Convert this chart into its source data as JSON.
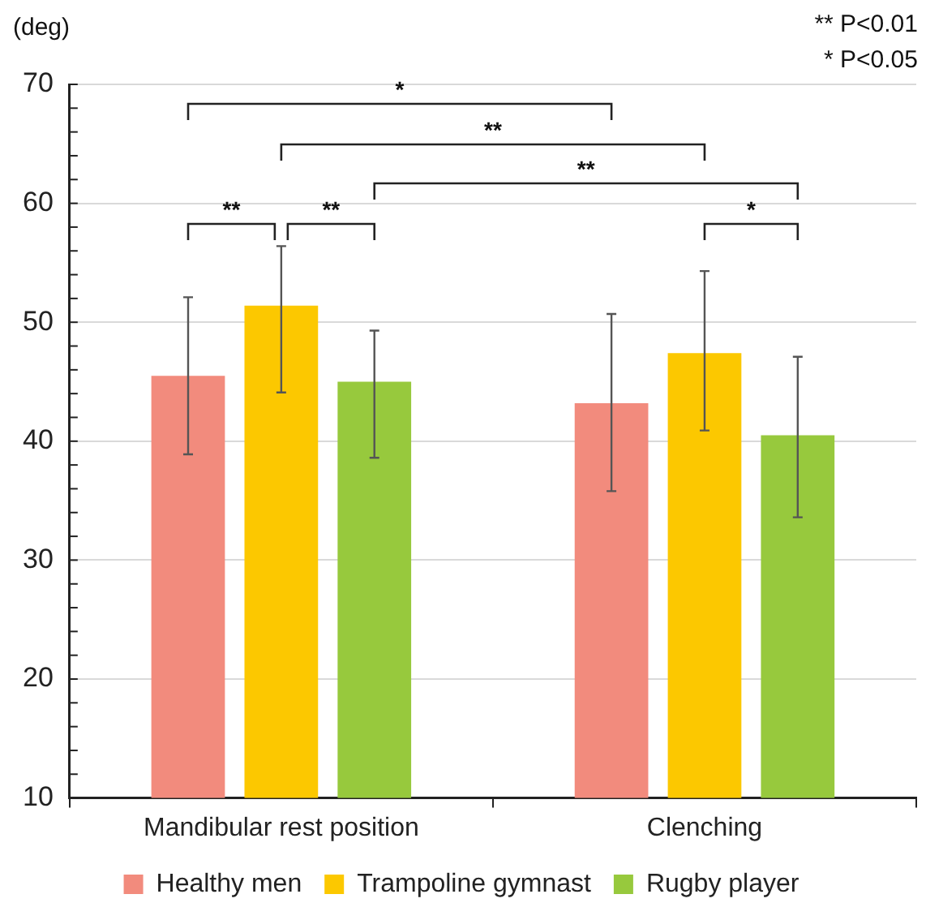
{
  "chart_data": {
    "type": "bar",
    "ylabel": "(deg)",
    "categories": [
      "Mandibular rest position",
      "Clenching"
    ],
    "series": [
      {
        "name": "Healthy men",
        "color": "#f28b7d",
        "values": [
          45.5,
          43.2
        ],
        "errors": [
          [
            38.9,
            52.1
          ],
          [
            35.8,
            50.7
          ]
        ]
      },
      {
        "name": "Trampoline gymnast",
        "color": "#fcc800",
        "values": [
          51.4,
          47.4
        ],
        "errors": [
          [
            44.1,
            56.4
          ],
          [
            40.9,
            54.3
          ]
        ]
      },
      {
        "name": "Rugby player",
        "color": "#97c93d",
        "values": [
          45.0,
          40.5
        ],
        "errors": [
          [
            38.6,
            49.3
          ],
          [
            33.6,
            47.1
          ]
        ]
      }
    ],
    "ylim": [
      10,
      70
    ],
    "yticks": [
      10,
      {
        "value": 12,
        "label": null
      },
      {
        "value": 14,
        "label": null
      },
      {
        "value": 16,
        "label": null
      },
      {
        "value": 18,
        "label": null
      },
      20,
      {
        "value": 22,
        "label": null
      },
      {
        "value": 24,
        "label": null
      },
      {
        "value": 26,
        "label": null
      },
      {
        "value": 28,
        "label": null
      },
      30,
      {
        "value": 32,
        "label": null
      },
      {
        "value": 34,
        "label": null
      },
      {
        "value": 36,
        "label": null
      },
      {
        "value": 38,
        "label": null
      },
      40,
      {
        "value": 42,
        "label": null
      },
      {
        "value": 44,
        "label": null
      },
      {
        "value": 46,
        "label": null
      },
      {
        "value": 48,
        "label": null
      },
      50,
      {
        "value": 52,
        "label": null
      },
      {
        "value": 54,
        "label": null
      },
      {
        "value": 56,
        "label": null
      },
      {
        "value": 58,
        "label": null
      },
      60,
      {
        "value": 62,
        "label": null
      },
      {
        "value": 64,
        "label": null
      },
      {
        "value": 66,
        "label": null
      },
      {
        "value": 68,
        "label": null
      },
      70
    ],
    "grid": "y",
    "legend": "bottom",
    "annotations": [
      "*",
      "**",
      "**",
      "**",
      "**",
      "*",
      "** P<0.01",
      "* P<0.05"
    ]
  }
}
